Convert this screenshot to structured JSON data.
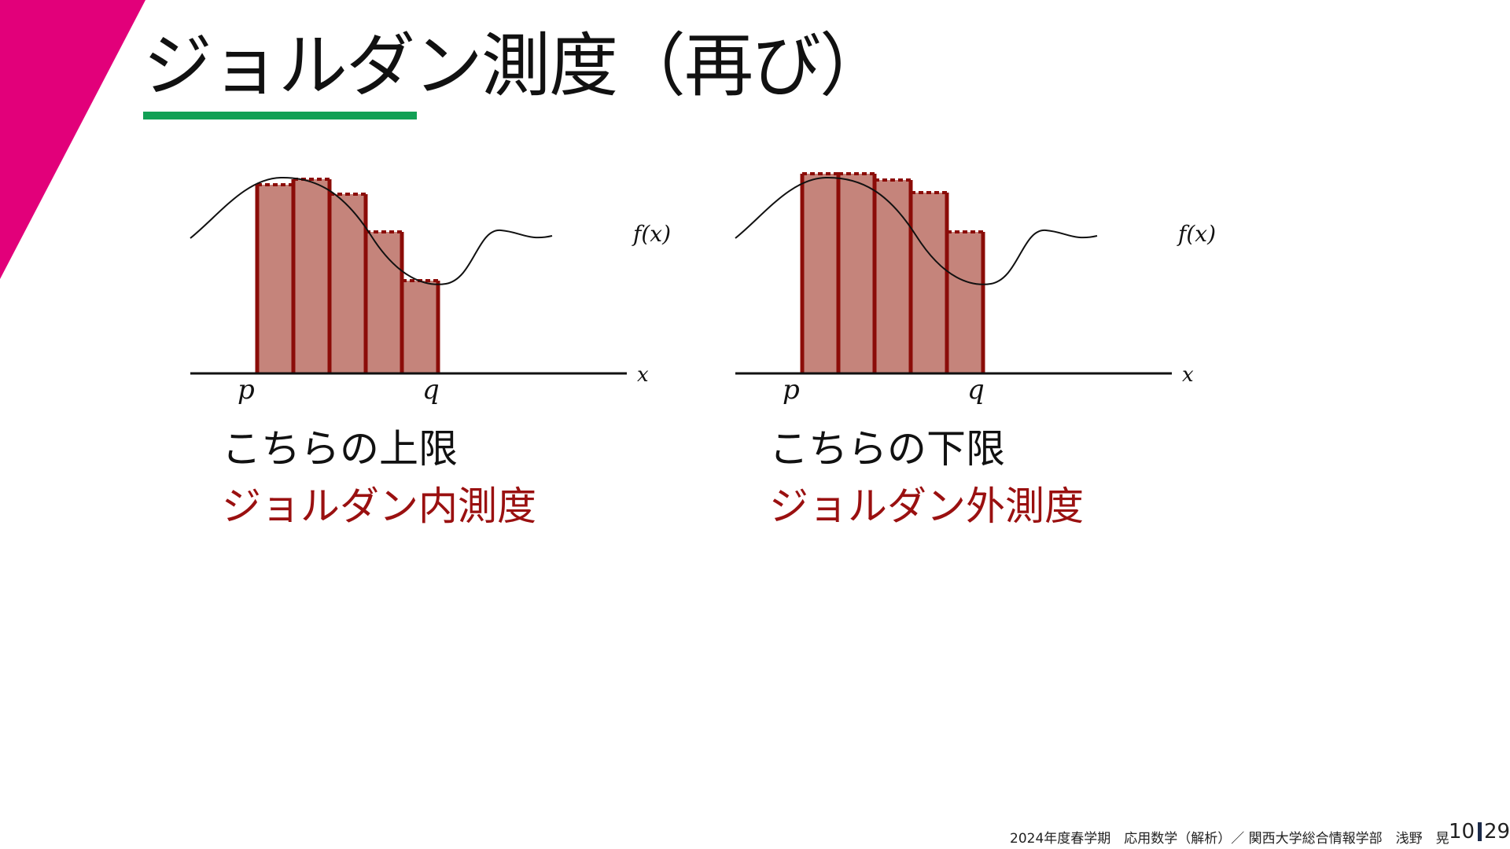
{
  "slide": {
    "title": "ジョルダン測度（再び）",
    "accent_color": "#e2007a",
    "underline_color": "#12a055"
  },
  "diagrams": [
    {
      "curve_label": "f(x)",
      "x_label": "x",
      "p_label": "p",
      "q_label": "q",
      "caption_top": "こちらの上限",
      "caption_bottom": "ジョルダン内測度"
    },
    {
      "curve_label": "f(x)",
      "x_label": "x",
      "p_label": "p",
      "q_label": "q",
      "caption_top": "こちらの下限",
      "caption_bottom": "ジョルダン外測度"
    }
  ],
  "footer": {
    "text": "2024年度春学期　応用数学（解析）／ 関西大学総合情報学部　浅野　晃",
    "page": "10",
    "total": "29"
  },
  "colors": {
    "bar_fill": "#c5847b",
    "bar_edge": "#8b0c08",
    "caption_red": "#9a1010"
  }
}
